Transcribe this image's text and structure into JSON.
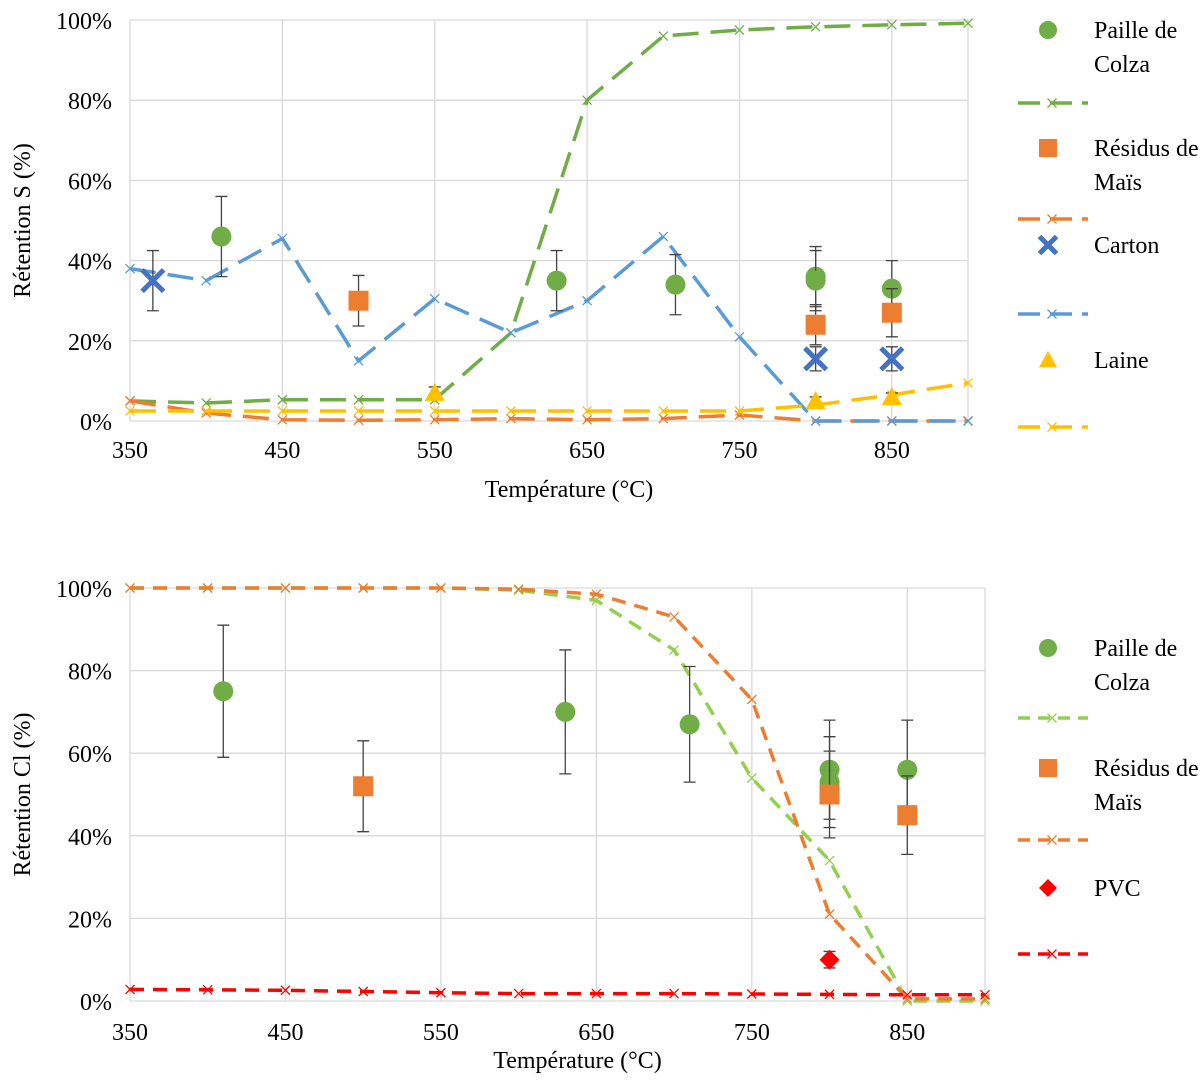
{
  "chart_data": [
    {
      "type": "scatter",
      "title": "",
      "xlabel": "Température (°C)",
      "ylabel": "Rétention S (%)",
      "xlim": [
        350,
        900
      ],
      "ylim": [
        0,
        100
      ],
      "x_ticks": [
        350,
        450,
        550,
        650,
        750,
        850
      ],
      "x_tick_labels": [
        "350",
        "450",
        "550",
        "650",
        "750",
        "850"
      ],
      "y_ticks": [
        0,
        20,
        40,
        60,
        80,
        100
      ],
      "y_tick_labels": [
        "0%",
        "20%",
        "40%",
        "60%",
        "80%",
        "100%"
      ],
      "grid": true,
      "legend_position": "right",
      "series": [
        {
          "name": "Paille de Colza",
          "kind": "marker",
          "marker": "circle",
          "color": "#70ad47",
          "points": [
            {
              "x": 410,
              "y": 46,
              "err": 10
            },
            {
              "x": 630,
              "y": 35,
              "err": 7.5
            },
            {
              "x": 708,
              "y": 34,
              "err": 7.5
            },
            {
              "x": 800,
              "y": 36,
              "err": 7.5
            },
            {
              "x": 800,
              "y": 35,
              "err": 7.5
            },
            {
              "x": 850,
              "y": 33,
              "err": 7
            }
          ]
        },
        {
          "name": "",
          "kind": "line",
          "marker": "x",
          "color": "#70ad47",
          "dash": "26 12",
          "points": [
            {
              "x": 350,
              "y": 5
            },
            {
              "x": 400,
              "y": 4.5
            },
            {
              "x": 450,
              "y": 5.3
            },
            {
              "x": 500,
              "y": 5.3
            },
            {
              "x": 550,
              "y": 5.3
            },
            {
              "x": 600,
              "y": 22
            },
            {
              "x": 650,
              "y": 80
            },
            {
              "x": 700,
              "y": 96
            },
            {
              "x": 750,
              "y": 97.5
            },
            {
              "x": 800,
              "y": 98.3
            },
            {
              "x": 850,
              "y": 98.8
            },
            {
              "x": 900,
              "y": 99.2
            }
          ]
        },
        {
          "name": "Résidus de Maïs",
          "kind": "marker",
          "marker": "square",
          "color": "#ed7d31",
          "points": [
            {
              "x": 500,
              "y": 30,
              "err": 6.3
            },
            {
              "x": 800,
              "y": 24,
              "err": 5
            },
            {
              "x": 850,
              "y": 27,
              "err": 6
            }
          ]
        },
        {
          "name": "",
          "kind": "line",
          "marker": "x",
          "color": "#ed7d31",
          "dash": "26 12",
          "points": [
            {
              "x": 350,
              "y": 5
            },
            {
              "x": 400,
              "y": 2
            },
            {
              "x": 450,
              "y": 0.3
            },
            {
              "x": 500,
              "y": 0.2
            },
            {
              "x": 550,
              "y": 0.3
            },
            {
              "x": 600,
              "y": 0.6
            },
            {
              "x": 650,
              "y": 0.3
            },
            {
              "x": 700,
              "y": 0.6
            },
            {
              "x": 750,
              "y": 1.5
            },
            {
              "x": 800,
              "y": 0
            },
            {
              "x": 850,
              "y": 0
            },
            {
              "x": 900,
              "y": 0
            }
          ]
        },
        {
          "name": "Carton",
          "kind": "marker",
          "marker": "x-bold",
          "color": "#4472c4",
          "points": [
            {
              "x": 365,
              "y": 35,
              "err": 7.5
            },
            {
              "x": 800,
              "y": 15.5,
              "err": 3
            },
            {
              "x": 850,
              "y": 15.5,
              "err": 3
            }
          ]
        },
        {
          "name": "",
          "kind": "line",
          "marker": "x",
          "color": "#5b9bd5",
          "dash": "26 12",
          "points": [
            {
              "x": 350,
              "y": 38
            },
            {
              "x": 400,
              "y": 35
            },
            {
              "x": 450,
              "y": 45.5
            },
            {
              "x": 500,
              "y": 15
            },
            {
              "x": 550,
              "y": 30.5
            },
            {
              "x": 600,
              "y": 22
            },
            {
              "x": 650,
              "y": 30
            },
            {
              "x": 700,
              "y": 46
            },
            {
              "x": 750,
              "y": 21
            },
            {
              "x": 800,
              "y": 0
            },
            {
              "x": 850,
              "y": 0
            },
            {
              "x": 900,
              "y": 0
            }
          ]
        },
        {
          "name": "Laine",
          "kind": "marker",
          "marker": "triangle",
          "color": "#ffc000",
          "points": [
            {
              "x": 550,
              "y": 7,
              "err": 1.5
            },
            {
              "x": 800,
              "y": 5,
              "err": 1
            },
            {
              "x": 850,
              "y": 6,
              "err": 1
            }
          ]
        },
        {
          "name": "",
          "kind": "line",
          "marker": "x",
          "color": "#ffc000",
          "dash": "26 12",
          "points": [
            {
              "x": 350,
              "y": 2.5
            },
            {
              "x": 400,
              "y": 2.5
            },
            {
              "x": 450,
              "y": 2.5
            },
            {
              "x": 500,
              "y": 2.5
            },
            {
              "x": 550,
              "y": 2.5
            },
            {
              "x": 600,
              "y": 2.5
            },
            {
              "x": 650,
              "y": 2.5
            },
            {
              "x": 700,
              "y": 2.5
            },
            {
              "x": 750,
              "y": 2.5
            },
            {
              "x": 800,
              "y": 4
            },
            {
              "x": 850,
              "y": 6.5
            },
            {
              "x": 900,
              "y": 9.5
            }
          ]
        }
      ]
    },
    {
      "type": "scatter",
      "title": "",
      "xlabel": "Température (°C)",
      "ylabel": "Rétention Cl (%)",
      "xlim": [
        350,
        900
      ],
      "ylim": [
        0,
        100
      ],
      "x_ticks": [
        350,
        450,
        550,
        650,
        750,
        850
      ],
      "x_tick_labels": [
        "350",
        "450",
        "550",
        "650",
        "750",
        "850"
      ],
      "y_ticks": [
        0,
        20,
        40,
        60,
        80,
        100
      ],
      "y_tick_labels": [
        "0%",
        "20%",
        "40%",
        "60%",
        "80%",
        "100%"
      ],
      "grid": true,
      "legend_position": "right",
      "series": [
        {
          "name": "Paille de Colza",
          "kind": "marker",
          "marker": "circle",
          "color": "#70ad47",
          "points": [
            {
              "x": 410,
              "y": 75,
              "err": 16
            },
            {
              "x": 630,
              "y": 70,
              "err": 15
            },
            {
              "x": 710,
              "y": 67,
              "err": 14
            },
            {
              "x": 800,
              "y": 56,
              "err": 12
            },
            {
              "x": 800,
              "y": 53,
              "err": 11
            },
            {
              "x": 850,
              "y": 56,
              "err": 12
            }
          ]
        },
        {
          "name": "",
          "kind": "line",
          "marker": "x",
          "color": "#92d050",
          "dash": "14 9",
          "points": [
            {
              "x": 350,
              "y": 100
            },
            {
              "x": 400,
              "y": 100
            },
            {
              "x": 450,
              "y": 100
            },
            {
              "x": 500,
              "y": 100
            },
            {
              "x": 550,
              "y": 100
            },
            {
              "x": 600,
              "y": 99.5
            },
            {
              "x": 650,
              "y": 97
            },
            {
              "x": 700,
              "y": 85
            },
            {
              "x": 750,
              "y": 54
            },
            {
              "x": 800,
              "y": 34
            },
            {
              "x": 850,
              "y": 0
            },
            {
              "x": 900,
              "y": 0
            }
          ]
        },
        {
          "name": "Résidus de Maïs",
          "kind": "marker",
          "marker": "square",
          "color": "#ed7d31",
          "points": [
            {
              "x": 500,
              "y": 52,
              "err": 11
            },
            {
              "x": 800,
              "y": 50,
              "err": 10.5
            },
            {
              "x": 850,
              "y": 45,
              "err": 9.5
            }
          ]
        },
        {
          "name": "",
          "kind": "line",
          "marker": "x",
          "color": "#ed7d31",
          "dash": "14 9",
          "points": [
            {
              "x": 350,
              "y": 100
            },
            {
              "x": 400,
              "y": 100
            },
            {
              "x": 450,
              "y": 100
            },
            {
              "x": 500,
              "y": 100
            },
            {
              "x": 550,
              "y": 100
            },
            {
              "x": 600,
              "y": 99.7
            },
            {
              "x": 650,
              "y": 98.5
            },
            {
              "x": 700,
              "y": 93
            },
            {
              "x": 750,
              "y": 73
            },
            {
              "x": 800,
              "y": 21
            },
            {
              "x": 850,
              "y": 0.5
            },
            {
              "x": 900,
              "y": 0.5
            }
          ]
        },
        {
          "name": "PVC",
          "kind": "marker",
          "marker": "diamond",
          "color": "#ff0000",
          "points": [
            {
              "x": 800,
              "y": 10,
              "err": 2
            }
          ]
        },
        {
          "name": "",
          "kind": "line",
          "marker": "x",
          "color": "#ff0000",
          "dash": "14 9",
          "points": [
            {
              "x": 350,
              "y": 2.8
            },
            {
              "x": 400,
              "y": 2.7
            },
            {
              "x": 450,
              "y": 2.6
            },
            {
              "x": 500,
              "y": 2.3
            },
            {
              "x": 550,
              "y": 2
            },
            {
              "x": 600,
              "y": 1.8
            },
            {
              "x": 650,
              "y": 1.8
            },
            {
              "x": 700,
              "y": 1.8
            },
            {
              "x": 750,
              "y": 1.7
            },
            {
              "x": 800,
              "y": 1.6
            },
            {
              "x": 850,
              "y": 1.5
            },
            {
              "x": 900,
              "y": 1.5
            }
          ]
        }
      ]
    }
  ]
}
